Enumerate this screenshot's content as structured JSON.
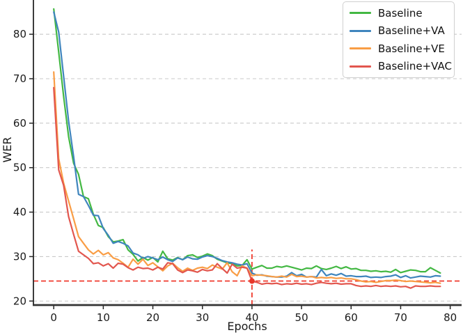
{
  "chart_data": {
    "type": "line",
    "title": "",
    "xlabel": "Epochs",
    "ylabel": "WER",
    "xlim": [
      -4.1,
      82.3
    ],
    "ylim": [
      19.1,
      87.7
    ],
    "x_ticks": [
      0,
      10,
      20,
      30,
      40,
      50,
      60,
      70,
      80
    ],
    "y_ticks": [
      20,
      30,
      40,
      50,
      60,
      70,
      80
    ],
    "grid": "horizontal-dashed",
    "grid_color": "#c9c9c9",
    "legend_position": "upper-right",
    "x": [
      0,
      1,
      2,
      3,
      4,
      5,
      6,
      7,
      8,
      9,
      10,
      11,
      12,
      13,
      14,
      15,
      16,
      17,
      18,
      19,
      20,
      21,
      22,
      23,
      24,
      25,
      26,
      27,
      28,
      29,
      30,
      31,
      32,
      33,
      34,
      35,
      36,
      37,
      38,
      39,
      40,
      41,
      42,
      43,
      44,
      45,
      46,
      47,
      48,
      49,
      50,
      51,
      52,
      53,
      54,
      55,
      56,
      57,
      58,
      59,
      60,
      61,
      62,
      63,
      64,
      65,
      66,
      67,
      68,
      69,
      70,
      71,
      72,
      73,
      74,
      75,
      76,
      77,
      78
    ],
    "series": [
      {
        "name": "Baseline",
        "color": "#43b843",
        "values": [
          85.7,
          76.0,
          66.0,
          57.0,
          51.0,
          48.5,
          43.5,
          43.0,
          39.5,
          37.0,
          36.5,
          34.5,
          33.3,
          33.5,
          33.8,
          31.5,
          30.5,
          29.0,
          29.8,
          29.2,
          29.8,
          28.8,
          31.2,
          29.5,
          29.2,
          29.8,
          29.3,
          30.2,
          30.4,
          29.8,
          30.1,
          30.6,
          30.2,
          29.4,
          29.0,
          28.6,
          28.4,
          27.9,
          28.0,
          29.3,
          27.2,
          27.6,
          28.0,
          27.4,
          27.4,
          27.8,
          27.6,
          27.9,
          27.6,
          27.3,
          27.0,
          27.4,
          27.3,
          27.9,
          27.3,
          27.1,
          27.4,
          27.8,
          27.3,
          27.7,
          27.2,
          27.3,
          26.9,
          26.9,
          26.7,
          26.8,
          26.6,
          26.7,
          26.5,
          27.1,
          26.4,
          26.7,
          27.0,
          26.9,
          26.6,
          26.6,
          27.5,
          26.9,
          26.3
        ]
      },
      {
        "name": "Baseline+VA",
        "color": "#3f85bd",
        "values": [
          85.0,
          80.5,
          70.5,
          60.5,
          52.5,
          44.0,
          43.5,
          41.5,
          39.3,
          39.2,
          36.3,
          34.8,
          33.0,
          33.4,
          33.0,
          32.4,
          30.8,
          30.4,
          29.6,
          30.0,
          29.7,
          29.3,
          29.9,
          29.3,
          28.9,
          29.7,
          29.3,
          29.9,
          29.5,
          29.4,
          29.9,
          30.2,
          30.0,
          29.6,
          29.1,
          28.8,
          28.6,
          28.3,
          28.1,
          28.4,
          26.3,
          25.8,
          25.9,
          25.6,
          25.5,
          25.4,
          25.4,
          25.6,
          26.4,
          25.7,
          26.0,
          25.4,
          25.5,
          25.4,
          27.1,
          25.7,
          26.1,
          25.8,
          26.2,
          25.6,
          25.7,
          25.5,
          25.5,
          25.6,
          25.3,
          25.4,
          25.3,
          25.5,
          25.6,
          25.9,
          25.3,
          25.7,
          25.2,
          25.4,
          25.6,
          25.5,
          25.4,
          25.7,
          25.6
        ]
      },
      {
        "name": "Baseline+VE",
        "color": "#f99d45",
        "values": [
          71.5,
          52.0,
          46.5,
          42.5,
          38.5,
          34.5,
          33.0,
          31.5,
          30.6,
          31.4,
          30.4,
          30.9,
          29.7,
          29.3,
          28.5,
          27.6,
          29.4,
          28.3,
          29.4,
          28.0,
          28.6,
          27.7,
          26.8,
          27.9,
          28.5,
          27.5,
          26.7,
          27.4,
          26.9,
          27.4,
          27.6,
          27.3,
          28.1,
          27.6,
          27.2,
          28.6,
          26.6,
          25.7,
          27.9,
          27.4,
          25.7,
          25.9,
          25.8,
          25.7,
          25.5,
          25.4,
          25.6,
          25.4,
          26.0,
          25.5,
          25.6,
          25.4,
          25.5,
          25.2,
          25.3,
          25.2,
          25.3,
          25.1,
          25.2,
          25.0,
          25.0,
          24.8,
          24.5,
          24.3,
          24.4,
          24.2,
          24.4,
          24.6,
          24.6,
          24.7,
          24.6,
          24.4,
          24.5,
          24.4,
          24.3,
          24.2,
          24.1,
          24.2,
          24.0
        ]
      },
      {
        "name": "Baseline+VAC",
        "color": "#e2564e",
        "values": [
          68.0,
          49.5,
          46.0,
          39.0,
          35.0,
          31.2,
          30.4,
          29.6,
          28.4,
          28.6,
          27.9,
          28.4,
          27.4,
          28.5,
          28.3,
          27.5,
          27.0,
          27.6,
          27.3,
          27.4,
          27.0,
          27.6,
          27.2,
          28.6,
          28.4,
          27.0,
          26.4,
          27.0,
          26.8,
          26.5,
          27.1,
          26.8,
          27.0,
          28.4,
          27.3,
          26.3,
          28.3,
          27.4,
          27.6,
          27.4,
          24.5,
          24.2,
          23.8,
          24.0,
          23.9,
          24.0,
          23.7,
          23.9,
          23.8,
          24.0,
          23.8,
          23.9,
          23.7,
          24.0,
          24.2,
          24.0,
          23.9,
          24.0,
          23.8,
          23.9,
          23.9,
          23.5,
          23.3,
          23.4,
          23.3,
          23.5,
          23.3,
          23.4,
          23.3,
          23.4,
          23.2,
          23.3,
          22.9,
          23.4,
          23.3,
          23.3,
          23.4,
          23.3,
          23.3
        ]
      }
    ],
    "annotations": {
      "hline": {
        "y": 24.5,
        "color": "#f0392c",
        "style": "dashed"
      },
      "vline": {
        "x": 40,
        "y_from": 19.1,
        "y_to": 31.6,
        "color": "#f0392c",
        "style": "dashed"
      },
      "point": {
        "x": 40,
        "y": 24.5,
        "color": "#e8382b"
      }
    }
  }
}
